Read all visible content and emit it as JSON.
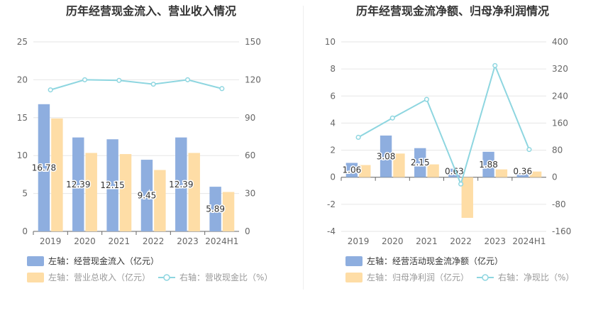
{
  "charts": [
    {
      "title": "历年经营现金流入、营业收入情况",
      "legend": [
        {
          "label": "左轴：经营现金流入（亿元）",
          "kind": "bar",
          "color": "#8eaedf"
        },
        {
          "label": "左轴：营业总收入（亿元）",
          "kind": "bar",
          "color": "#fedda6"
        },
        {
          "label": "右轴：营收现金比（%）",
          "kind": "line",
          "color": "#8ed6e0"
        }
      ]
    },
    {
      "title": "历年经营现金流净额、归母净利润情况",
      "legend": [
        {
          "label": "左轴：经营活动现金流净额（亿元）",
          "kind": "bar",
          "color": "#8eaedf"
        },
        {
          "label": "左轴：归母净利润（亿元）",
          "kind": "bar",
          "color": "#fedda6"
        },
        {
          "label": "右轴：净现比（%）",
          "kind": "line",
          "color": "#8ed6e0"
        }
      ]
    }
  ],
  "chart_data": [
    {
      "type": "bar",
      "title": "历年经营现金流入、营业收入情况",
      "categories": [
        "2019",
        "2020",
        "2021",
        "2022",
        "2023",
        "2024H1"
      ],
      "left_axis": {
        "ylim": [
          0,
          25
        ],
        "ticks": [
          "0",
          "5",
          "10",
          "15",
          "20",
          "25"
        ]
      },
      "right_axis": {
        "ylim": [
          0,
          150
        ],
        "ticks": [
          "0",
          "30",
          "60",
          "90",
          "120",
          "150"
        ]
      },
      "series": [
        {
          "name": "左轴：经营现金流入（亿元）",
          "type": "bar",
          "axis": "left",
          "values": [
            16.78,
            12.39,
            12.15,
            9.45,
            12.39,
            5.89
          ],
          "labels": [
            "16.78",
            "12.39",
            "12.15",
            "9.45",
            "12.39",
            "5.89"
          ]
        },
        {
          "name": "左轴：营业总收入（亿元）",
          "type": "bar",
          "axis": "left",
          "values": [
            14.9,
            10.35,
            10.2,
            8.1,
            10.35,
            5.2
          ]
        },
        {
          "name": "右轴：营收现金比（%）",
          "type": "line",
          "axis": "right",
          "values": [
            112,
            120,
            119.5,
            116.5,
            120,
            113
          ]
        }
      ],
      "grid": true,
      "legend_position": "bottom"
    },
    {
      "type": "bar",
      "title": "历年经营现金流净额、归母净利润情况",
      "categories": [
        "2019",
        "2020",
        "2021",
        "2022",
        "2023",
        "2024H1"
      ],
      "left_axis": {
        "ylim": [
          -4,
          10
        ],
        "ticks": [
          "-4",
          "-2",
          "0",
          "2",
          "4",
          "6",
          "8",
          "10"
        ]
      },
      "right_axis": {
        "ylim": [
          -160,
          400
        ],
        "ticks": [
          "-160",
          "-80",
          "0",
          "80",
          "160",
          "240",
          "320",
          "400"
        ]
      },
      "series": [
        {
          "name": "左轴：经营活动现金流净额（亿元）",
          "type": "bar",
          "axis": "left",
          "values": [
            1.06,
            3.08,
            2.15,
            0.63,
            1.88,
            0.36
          ],
          "labels": [
            "1.06",
            "3.08",
            "2.15",
            "0.63",
            "1.88",
            "0.36"
          ]
        },
        {
          "name": "左轴：归母净利润（亿元）",
          "type": "bar",
          "axis": "left",
          "values": [
            0.9,
            1.75,
            0.95,
            -3.0,
            0.58,
            0.42
          ]
        },
        {
          "name": "右轴：净现比（%）",
          "type": "line",
          "axis": "right",
          "values": [
            118,
            175,
            230,
            -20,
            330,
            82
          ]
        }
      ],
      "grid": true,
      "legend_position": "bottom"
    }
  ]
}
